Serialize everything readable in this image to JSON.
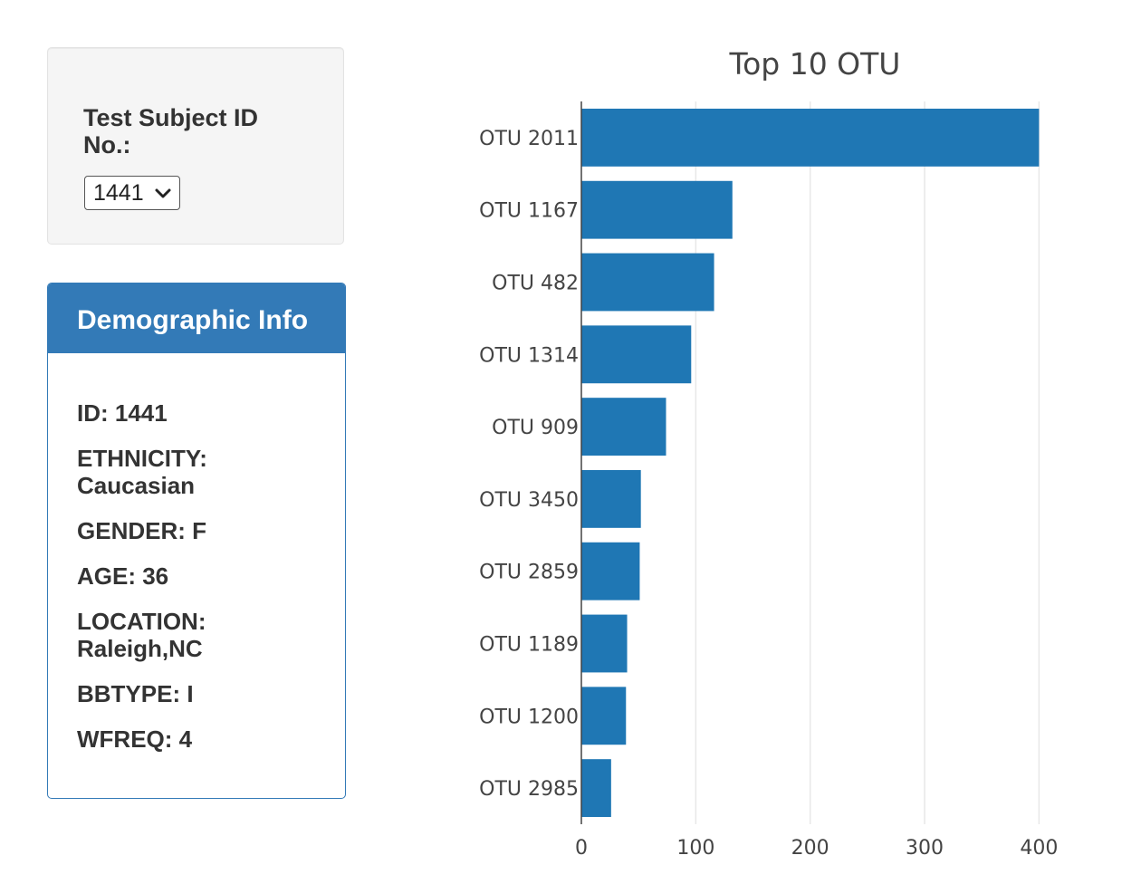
{
  "selector": {
    "label": "Test Subject ID No.:",
    "selected_value": "1441",
    "chevron_icon": "chevron-down-icon"
  },
  "demographics": {
    "heading": "Demographic Info",
    "items": [
      {
        "text": "ID: 1441"
      },
      {
        "text": "ETHNICITY: Caucasian"
      },
      {
        "text": "GENDER: F"
      },
      {
        "text": "AGE: 36"
      },
      {
        "text": "LOCATION: Raleigh,NC"
      },
      {
        "text": "BBTYPE: I"
      },
      {
        "text": "WFREQ: 4"
      }
    ]
  },
  "colors": {
    "panel_primary": "#337ab7",
    "bar_color": "#1f77b4",
    "grid_color": "#e8e8e8"
  },
  "chart_data": {
    "type": "bar",
    "orientation": "horizontal",
    "title": "Top 10 OTU",
    "categories": [
      "OTU 2011",
      "OTU 1167",
      "OTU 482",
      "OTU 1314",
      "OTU 909",
      "OTU 3450",
      "OTU 2859",
      "OTU 1189",
      "OTU 1200",
      "OTU 2985"
    ],
    "values": [
      400,
      132,
      116,
      96,
      74,
      52,
      51,
      40,
      39,
      26
    ],
    "xlim": [
      0,
      410
    ],
    "xticks": [
      0,
      100,
      200,
      300,
      400
    ],
    "xlabel": "",
    "ylabel": "",
    "grid": true,
    "legend": false
  }
}
